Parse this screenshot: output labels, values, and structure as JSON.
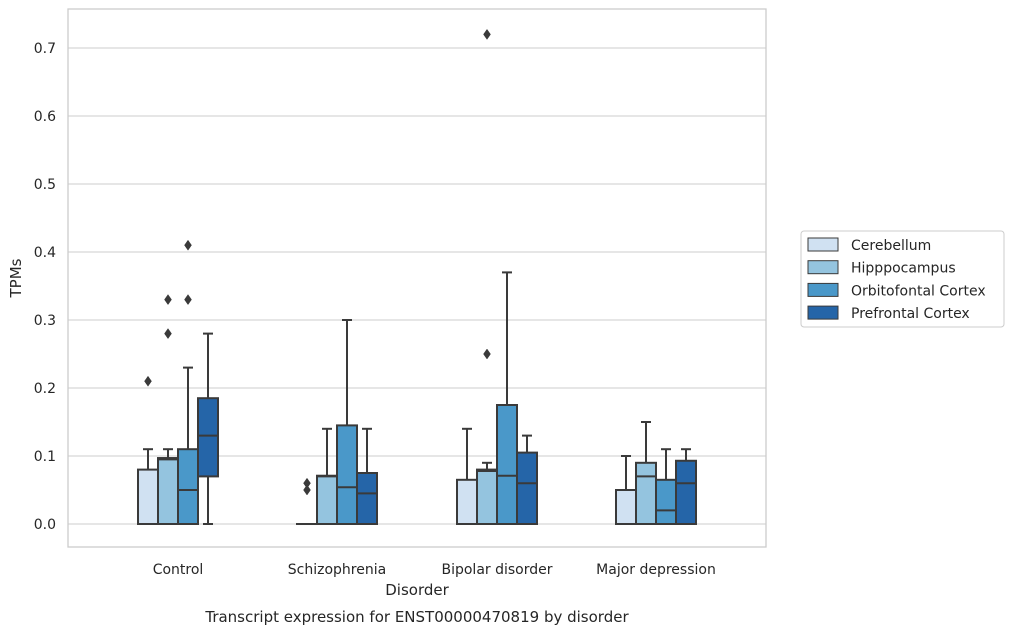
{
  "chart_data": {
    "type": "box",
    "caption": "Transcript expression for ENST00000470819 by disorder",
    "xlabel": "Disorder",
    "ylabel": "TPMs",
    "ylim": [
      -0.035,
      0.76
    ],
    "yticks": [
      "0.0",
      "0.1",
      "0.2",
      "0.3",
      "0.4",
      "0.5",
      "0.6",
      "0.7"
    ],
    "ytick_values": [
      0.0,
      0.1,
      0.2,
      0.3,
      0.4,
      0.5,
      0.6,
      0.7
    ],
    "grid": "horizontal",
    "legend_position": "right",
    "categories": [
      "Control",
      "Schizophrenia",
      "Bipolar disorder",
      "Major depression"
    ],
    "series": [
      {
        "name": "Cerebellum",
        "color": "#d0e1f2",
        "boxes": [
          {
            "q1": 0.0,
            "median": 0.0,
            "q3": 0.08,
            "whisker_low": 0.0,
            "whisker_high": 0.11,
            "outliers": [
              0.21
            ]
          },
          {
            "q1": 0.0,
            "median": 0.0,
            "q3": 0.0,
            "whisker_low": 0.0,
            "whisker_high": 0.0,
            "outliers": [
              0.05,
              0.06
            ]
          },
          {
            "q1": 0.0,
            "median": 0.0,
            "q3": 0.065,
            "whisker_low": 0.0,
            "whisker_high": 0.14,
            "outliers": []
          },
          {
            "q1": 0.0,
            "median": 0.0,
            "q3": 0.05,
            "whisker_low": 0.0,
            "whisker_high": 0.1,
            "outliers": []
          }
        ]
      },
      {
        "name": "Hipppocampus",
        "color": "#94c4df",
        "boxes": [
          {
            "q1": 0.0,
            "median": 0.095,
            "q3": 0.097,
            "whisker_low": 0.0,
            "whisker_high": 0.11,
            "outliers": [
              0.28,
              0.33
            ]
          },
          {
            "q1": 0.0,
            "median": 0.07,
            "q3": 0.071,
            "whisker_low": 0.0,
            "whisker_high": 0.14,
            "outliers": []
          },
          {
            "q1": 0.0,
            "median": 0.078,
            "q3": 0.08,
            "whisker_low": 0.0,
            "whisker_high": 0.09,
            "outliers": [
              0.25,
              0.72
            ]
          },
          {
            "q1": 0.0,
            "median": 0.07,
            "q3": 0.09,
            "whisker_low": 0.0,
            "whisker_high": 0.15,
            "outliers": []
          }
        ]
      },
      {
        "name": "Orbitofontal Cortex",
        "color": "#4a98c9",
        "boxes": [
          {
            "q1": 0.0,
            "median": 0.05,
            "q3": 0.11,
            "whisker_low": 0.0,
            "whisker_high": 0.23,
            "outliers": [
              0.33,
              0.41
            ]
          },
          {
            "q1": 0.0,
            "median": 0.054,
            "q3": 0.145,
            "whisker_low": 0.0,
            "whisker_high": 0.3,
            "outliers": []
          },
          {
            "q1": 0.0,
            "median": 0.071,
            "q3": 0.175,
            "whisker_low": 0.0,
            "whisker_high": 0.37,
            "outliers": []
          },
          {
            "q1": 0.0,
            "median": 0.02,
            "q3": 0.065,
            "whisker_low": 0.0,
            "whisker_high": 0.11,
            "outliers": []
          }
        ]
      },
      {
        "name": "Prefrontal Cortex",
        "color": "#2565a8",
        "boxes": [
          {
            "q1": 0.07,
            "median": 0.13,
            "q3": 0.185,
            "whisker_low": 0.0,
            "whisker_high": 0.28,
            "outliers": []
          },
          {
            "q1": 0.0,
            "median": 0.045,
            "q3": 0.075,
            "whisker_low": 0.0,
            "whisker_high": 0.14,
            "outliers": []
          },
          {
            "q1": 0.0,
            "median": 0.06,
            "q3": 0.105,
            "whisker_low": 0.0,
            "whisker_high": 0.13,
            "outliers": []
          },
          {
            "q1": 0.0,
            "median": 0.06,
            "q3": 0.093,
            "whisker_low": 0.0,
            "whisker_high": 0.11,
            "outliers": []
          }
        ]
      }
    ],
    "style": {
      "box_edge_color": "#3a3a3a",
      "grid_color": "#cccccc",
      "frame_color": "#cccccc",
      "text_color": "#262626"
    }
  }
}
